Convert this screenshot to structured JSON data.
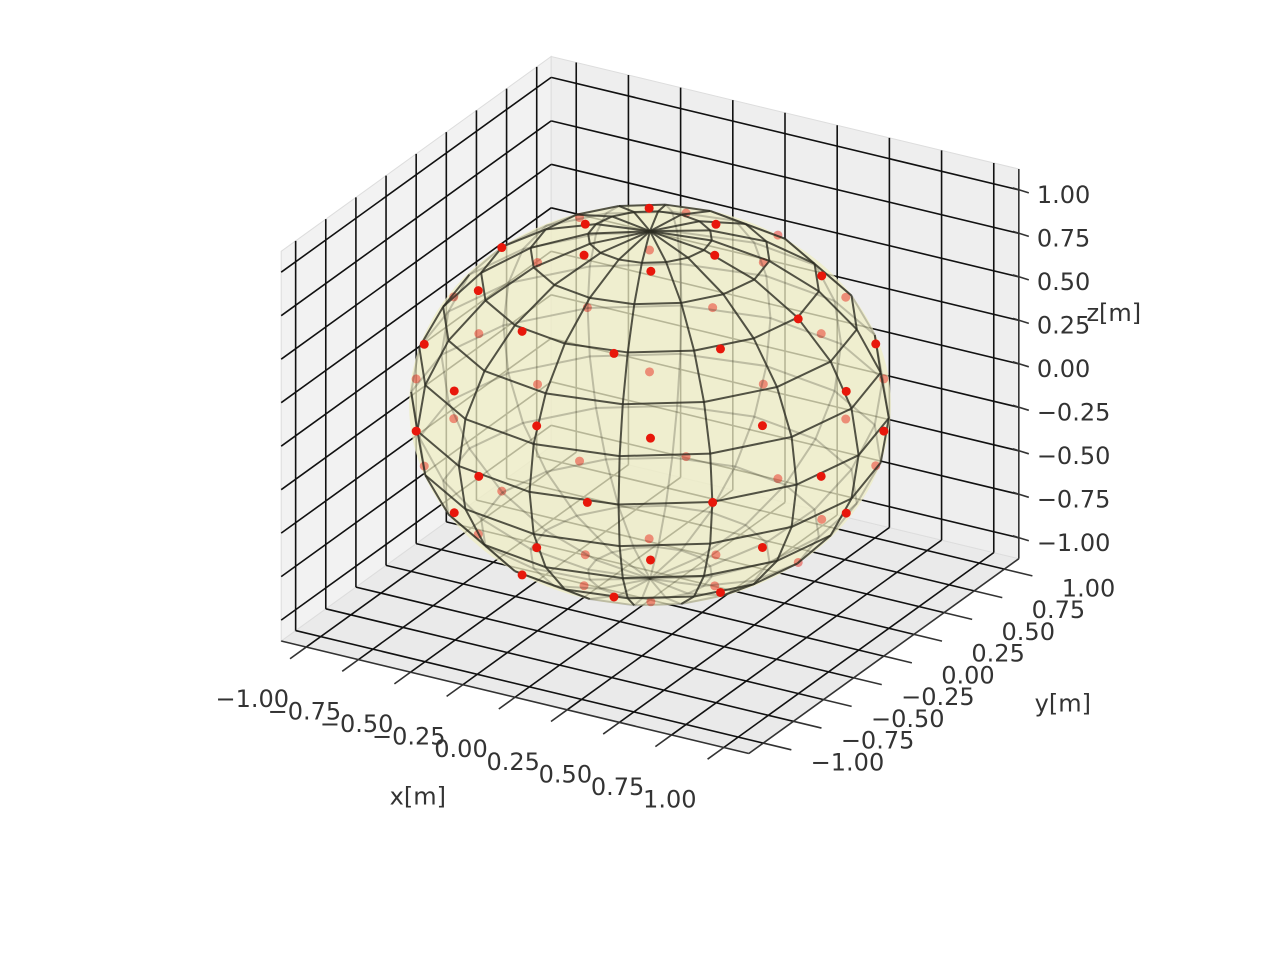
{
  "chart_data": {
    "type": "scatter3d",
    "xlabel": "x[m]",
    "ylabel": "y[m]",
    "zlabel": "z[m]",
    "xlim": [
      -1.12,
      1.12
    ],
    "ylim": [
      -1.12,
      1.12
    ],
    "zlim": [
      -1.12,
      1.12
    ],
    "xticks": [
      {
        "value": -1,
        "label": "−1.00"
      },
      {
        "value": -0.75,
        "label": "−0.75"
      },
      {
        "value": -0.5,
        "label": "−0.50"
      },
      {
        "value": -0.25,
        "label": "−0.25"
      },
      {
        "value": 0,
        "label": "0.00"
      },
      {
        "value": 0.25,
        "label": "0.25"
      },
      {
        "value": 0.5,
        "label": "0.50"
      },
      {
        "value": 0.75,
        "label": "0.75"
      },
      {
        "value": 1,
        "label": "1.00"
      }
    ],
    "yticks": [
      {
        "value": -1,
        "label": "−1.00"
      },
      {
        "value": -0.75,
        "label": "−0.75"
      },
      {
        "value": -0.5,
        "label": "−0.50"
      },
      {
        "value": -0.25,
        "label": "−0.25"
      },
      {
        "value": 0,
        "label": "0.00"
      },
      {
        "value": 0.25,
        "label": "0.25"
      },
      {
        "value": 0.5,
        "label": "0.50"
      },
      {
        "value": 0.75,
        "label": "0.75"
      },
      {
        "value": 1,
        "label": "1.00"
      }
    ],
    "zticks": [
      {
        "value": -1,
        "label": "−1.00"
      },
      {
        "value": -0.75,
        "label": "−0.75"
      },
      {
        "value": -0.5,
        "label": "−0.50"
      },
      {
        "value": -0.25,
        "label": "−0.25"
      },
      {
        "value": 0,
        "label": "0.00"
      },
      {
        "value": 0.25,
        "label": "0.25"
      },
      {
        "value": 0.5,
        "label": "0.50"
      },
      {
        "value": 0.75,
        "label": "0.75"
      },
      {
        "value": 1,
        "label": "1.00"
      }
    ],
    "grid": true,
    "color": "#e8170b",
    "surface_color": "#efedc4",
    "x": [
      0.31,
      0.16,
      -0.16,
      -0.31,
      -0.16,
      0.16,
      0.71,
      0.58,
      0.22,
      -0.22,
      -0.58,
      -0.71,
      -0.58,
      -0.22,
      0.22,
      0.58,
      0.94,
      0.81,
      0.47,
      0,
      -0.47,
      -0.81,
      -0.94,
      -0.81,
      -0.47,
      0,
      0.47,
      0.81,
      0.97,
      0.71,
      0.26,
      -0.26,
      -0.71,
      -0.97,
      -0.97,
      -0.71,
      -0.26,
      0.26,
      0.71,
      0.97,
      0.94,
      0.81,
      0.47,
      0,
      -0.47,
      -0.81,
      -0.94,
      -0.81,
      -0.47,
      0,
      0.47,
      0.81,
      0.71,
      0.58,
      0.22,
      -0.22,
      -0.58,
      -0.71,
      -0.58,
      -0.22,
      0.22,
      0.58,
      0.31,
      0.16,
      -0.16,
      -0.31,
      -0.16,
      0.16
    ],
    "y": [
      0,
      0.27,
      0.27,
      0,
      -0.27,
      -0.27,
      0,
      0.42,
      0.68,
      0.68,
      0.42,
      0,
      -0.42,
      -0.68,
      -0.68,
      -0.42,
      0,
      0.47,
      0.81,
      0.94,
      0.81,
      0.47,
      0,
      -0.47,
      -0.81,
      -0.94,
      -0.81,
      -0.47,
      0.26,
      0.71,
      0.97,
      0.97,
      0.71,
      0.26,
      -0.26,
      -0.71,
      -0.97,
      -0.97,
      -0.71,
      -0.26,
      0,
      0.47,
      0.81,
      0.94,
      0.81,
      0.47,
      0,
      -0.47,
      -0.81,
      -0.94,
      -0.81,
      -0.47,
      0,
      0.42,
      0.68,
      0.68,
      0.42,
      0,
      -0.42,
      -0.68,
      -0.68,
      -0.42,
      0,
      0.27,
      0.27,
      0,
      -0.27,
      -0.27
    ],
    "z": [
      0.95,
      0.95,
      0.95,
      0.95,
      0.95,
      0.95,
      0.7,
      0.7,
      0.7,
      0.7,
      0.7,
      0.7,
      0.7,
      0.7,
      0.7,
      0.7,
      0.35,
      0.35,
      0.35,
      0.35,
      0.35,
      0.35,
      0.35,
      0.35,
      0.35,
      0.35,
      0.35,
      0.35,
      0,
      0,
      0,
      0,
      0,
      0,
      0,
      0,
      0,
      0,
      0,
      0,
      -0.35,
      -0.35,
      -0.35,
      -0.35,
      -0.35,
      -0.35,
      -0.35,
      -0.35,
      -0.35,
      -0.35,
      -0.35,
      -0.35,
      -0.7,
      -0.7,
      -0.7,
      -0.7,
      -0.7,
      -0.7,
      -0.7,
      -0.7,
      -0.7,
      -0.7,
      -0.95,
      -0.95,
      -0.95,
      -0.95,
      -0.95,
      -0.95
    ]
  }
}
